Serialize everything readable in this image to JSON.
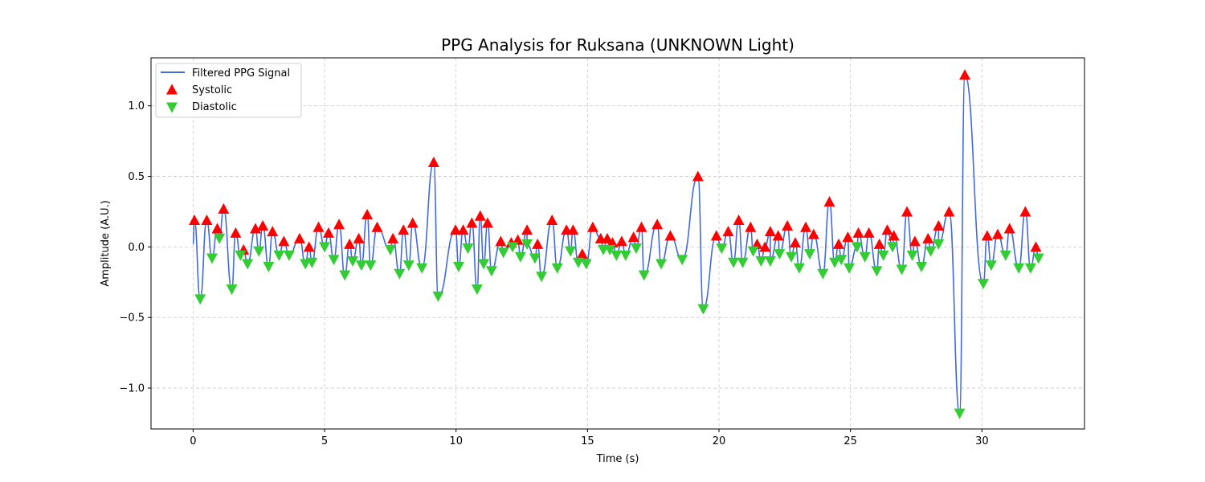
{
  "chart_data": {
    "type": "line",
    "title": "PPG Analysis for Ruksana (UNKNOWN Light)",
    "xlabel": "Time (s)",
    "ylabel": "Amplitude (A.U.)",
    "xlim": [
      -1.6,
      33.9
    ],
    "ylim": [
      -1.29,
      1.34
    ],
    "xticks": [
      0,
      5,
      10,
      15,
      20,
      25,
      30
    ],
    "yticks": [
      -1.0,
      -0.5,
      0.0,
      0.5,
      1.0
    ],
    "xtick_labels": [
      "0",
      "5",
      "10",
      "15",
      "20",
      "25",
      "30"
    ],
    "ytick_labels": [
      "−1.0",
      "−0.5",
      "0.0",
      "0.5",
      "1.0"
    ],
    "grid": true,
    "legend_position": "top-left",
    "colors": {
      "signal": "#4169e1",
      "systolic": "#ff0000",
      "diastolic": "#32cd32"
    },
    "legend": [
      {
        "label": "Filtered PPG Signal",
        "kind": "line"
      },
      {
        "label": "Systolic",
        "kind": "triangle-up"
      },
      {
        "label": "Diastolic",
        "kind": "triangle-down"
      }
    ],
    "systolic": {
      "name": "Systolic",
      "x": [
        0.05,
        0.52,
        0.92,
        1.16,
        1.62,
        1.92,
        2.37,
        2.65,
        3.02,
        3.45,
        4.05,
        4.41,
        4.77,
        5.15,
        5.55,
        5.95,
        6.3,
        6.62,
        7.0,
        7.6,
        8.0,
        8.35,
        9.15,
        9.98,
        10.27,
        10.6,
        10.92,
        11.2,
        11.7,
        12.1,
        12.35,
        12.7,
        13.1,
        13.65,
        14.2,
        14.45,
        14.8,
        15.2,
        15.5,
        15.75,
        15.95,
        16.3,
        16.75,
        17.05,
        17.65,
        18.15,
        19.2,
        19.9,
        20.35,
        20.75,
        21.2,
        21.45,
        21.75,
        21.95,
        22.25,
        22.6,
        22.9,
        23.3,
        23.6,
        24.2,
        24.55,
        24.9,
        25.3,
        25.7,
        26.1,
        26.4,
        26.65,
        27.15,
        27.45,
        27.95,
        28.35,
        28.75,
        29.35,
        30.2,
        30.6,
        31.05,
        31.65,
        32.05
      ],
      "y": [
        0.19,
        0.19,
        0.13,
        0.27,
        0.1,
        -0.02,
        0.13,
        0.15,
        0.11,
        0.04,
        0.06,
        0.0,
        0.14,
        0.1,
        0.16,
        0.02,
        0.06,
        0.23,
        0.14,
        0.06,
        0.12,
        0.17,
        0.6,
        0.12,
        0.12,
        0.17,
        0.22,
        0.17,
        0.04,
        0.03,
        0.05,
        0.12,
        0.02,
        0.19,
        0.12,
        0.12,
        -0.05,
        0.14,
        0.06,
        0.06,
        0.03,
        0.04,
        0.07,
        0.14,
        0.16,
        0.08,
        0.5,
        0.08,
        0.11,
        0.19,
        0.14,
        0.02,
        0.0,
        0.11,
        0.08,
        0.15,
        0.03,
        0.14,
        0.09,
        0.32,
        0.02,
        0.07,
        0.1,
        0.1,
        0.02,
        0.12,
        0.08,
        0.25,
        0.04,
        0.06,
        0.15,
        0.25,
        1.22,
        0.08,
        0.09,
        0.13,
        0.25,
        0.0
      ]
    },
    "diastolic": {
      "name": "Diastolic",
      "x": [
        0.27,
        0.72,
        1.0,
        1.47,
        1.8,
        2.07,
        2.5,
        2.87,
        3.27,
        3.65,
        4.27,
        4.52,
        5.0,
        5.35,
        5.77,
        6.07,
        6.4,
        6.75,
        7.5,
        7.85,
        8.2,
        8.7,
        9.32,
        10.1,
        10.45,
        10.8,
        11.05,
        11.35,
        11.8,
        12.15,
        12.45,
        12.7,
        13.0,
        13.25,
        13.85,
        14.35,
        14.65,
        14.95,
        15.6,
        15.85,
        16.1,
        16.45,
        16.85,
        17.15,
        17.8,
        18.6,
        19.4,
        20.1,
        20.55,
        20.9,
        21.3,
        21.6,
        21.95,
        22.3,
        22.75,
        23.05,
        23.45,
        23.95,
        24.4,
        24.65,
        24.95,
        25.25,
        25.55,
        26.0,
        26.25,
        26.6,
        26.95,
        27.35,
        27.7,
        28.05,
        28.35,
        29.15,
        30.05,
        30.35,
        30.9,
        31.4,
        31.85,
        32.15
      ],
      "y": [
        -0.37,
        -0.08,
        0.06,
        -0.3,
        -0.06,
        -0.12,
        -0.03,
        -0.14,
        -0.06,
        -0.06,
        -0.12,
        -0.11,
        0.0,
        -0.09,
        -0.2,
        -0.1,
        -0.13,
        -0.13,
        -0.02,
        -0.19,
        -0.13,
        -0.15,
        -0.35,
        -0.14,
        -0.01,
        -0.3,
        -0.12,
        -0.17,
        -0.04,
        0.0,
        -0.07,
        0.02,
        -0.08,
        -0.21,
        -0.15,
        -0.03,
        -0.11,
        -0.12,
        -0.02,
        -0.02,
        -0.06,
        -0.06,
        -0.01,
        -0.2,
        -0.12,
        -0.09,
        -0.44,
        -0.01,
        -0.11,
        -0.11,
        -0.03,
        -0.1,
        -0.1,
        -0.05,
        -0.07,
        -0.15,
        -0.05,
        -0.19,
        -0.11,
        -0.09,
        -0.15,
        0.0,
        -0.07,
        -0.17,
        -0.06,
        0.0,
        -0.16,
        -0.06,
        -0.14,
        -0.03,
        0.02,
        -1.18,
        -0.26,
        -0.13,
        -0.06,
        -0.15,
        -0.15,
        -0.08
      ]
    }
  }
}
